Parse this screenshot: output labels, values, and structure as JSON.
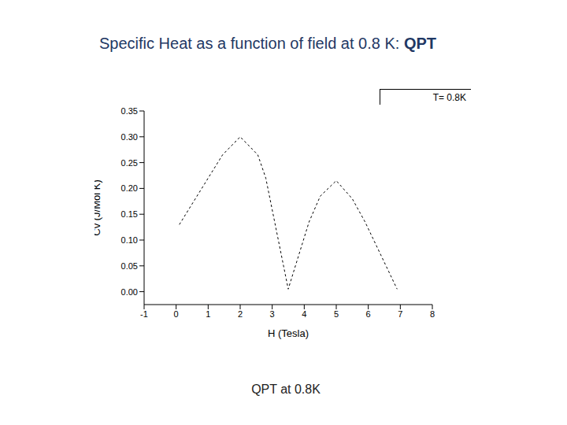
{
  "chart_data": {
    "type": "line",
    "title": "Specific Heat as a function of field at 0.8 K: QPT",
    "x_label": "H (Tesla)",
    "y_label": "Cv (J/Mol K)",
    "annotations": [
      "QPT at 0.8K"
    ],
    "series": [
      {
        "name": "T= 0.8K",
        "color": "#000000",
        "line_style": "dashed",
        "x": [
          0.1,
          1.45,
          2,
          2.55,
          2.8,
          3.5,
          4.15,
          4.5,
          5,
          5.5,
          5.9,
          6.9
        ],
        "values": [
          0.13,
          0.265,
          0.3,
          0.265,
          0.22,
          0.005,
          0.135,
          0.185,
          0.215,
          0.18,
          0.135,
          0.005
        ]
      }
    ],
    "xlim": [
      -1,
      8
    ],
    "xticks": [
      -1,
      0,
      1,
      2,
      3,
      4,
      5,
      6,
      7,
      8
    ],
    "ylim": [
      -0.025,
      0.35
    ],
    "yticks": [
      {
        "value": 0,
        "label": "0.00"
      },
      0.05,
      {
        "value": 0.1,
        "label": "0.10"
      },
      0.15,
      {
        "value": 0.2,
        "label": "0.20"
      },
      0.25,
      {
        "value": 0.3,
        "label": "0.30"
      },
      0.35
    ],
    "legend": "upper right",
    "grid": false
  }
}
